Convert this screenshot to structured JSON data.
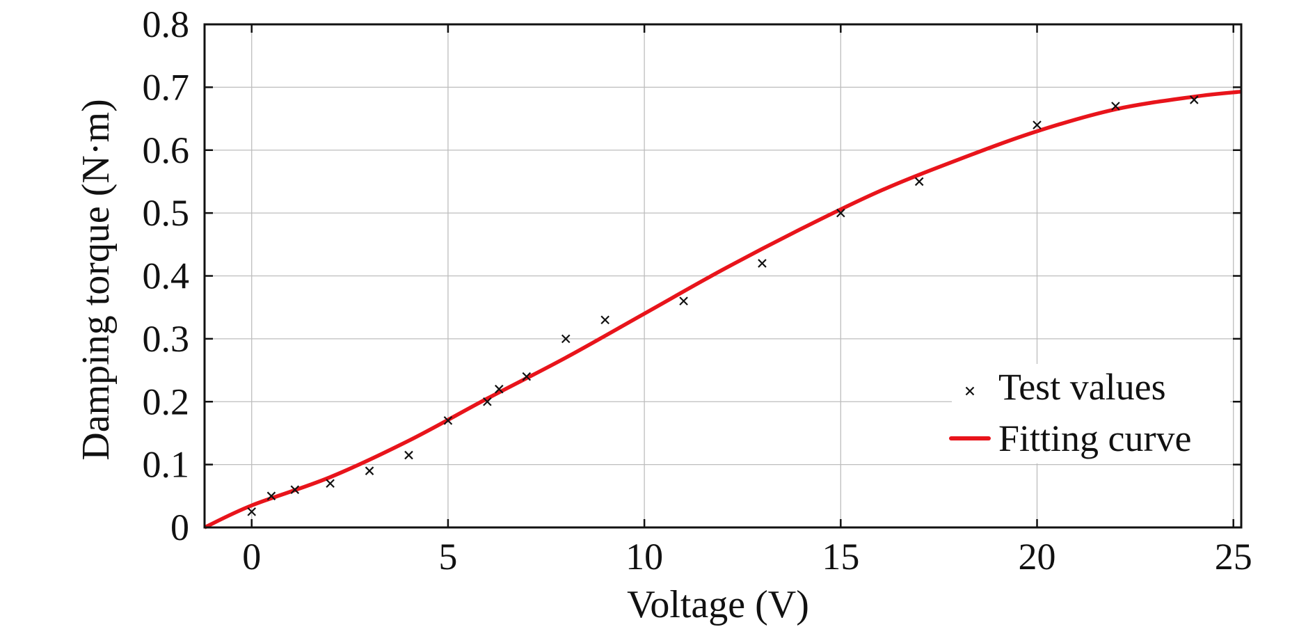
{
  "chart_data": {
    "type": "scatter",
    "xlabel": "Voltage (V)",
    "ylabel": "Damping torque (N·m)",
    "xlim": [
      -1.2,
      25.2
    ],
    "ylim": [
      0,
      0.8
    ],
    "x_ticks": [
      0,
      5,
      10,
      15,
      20,
      25
    ],
    "y_ticks": [
      0,
      0.1,
      0.2,
      0.3,
      0.4,
      0.5,
      0.6,
      0.7,
      0.8
    ],
    "x_tick_labels": [
      "0",
      "5",
      "10",
      "15",
      "20",
      "25"
    ],
    "y_tick_labels": [
      "0",
      "0.1",
      "0.2",
      "0.3",
      "0.4",
      "0.5",
      "0.6",
      "0.7",
      "0.8"
    ],
    "grid": true,
    "legend_position": "lower-right",
    "series": [
      {
        "name": "Test values",
        "type": "scatter",
        "marker": "x",
        "color": "#111111",
        "x": [
          0,
          0.5,
          1.1,
          2,
          3,
          4,
          5,
          6,
          6.3,
          7,
          8,
          9,
          11,
          13,
          15,
          17,
          20,
          22,
          24
        ],
        "y": [
          0.025,
          0.05,
          0.06,
          0.07,
          0.09,
          0.115,
          0.17,
          0.2,
          0.22,
          0.24,
          0.3,
          0.33,
          0.36,
          0.42,
          0.5,
          0.55,
          0.64,
          0.67,
          0.68
        ]
      },
      {
        "name": "Fitting curve",
        "type": "line",
        "color": "#e8141b",
        "x": [
          -1.2,
          0,
          2,
          4,
          6,
          8,
          10,
          12,
          14,
          16,
          18,
          20,
          22,
          24,
          25.2
        ],
        "y": [
          0,
          0.035,
          0.08,
          0.138,
          0.205,
          0.27,
          0.34,
          0.41,
          0.475,
          0.535,
          0.585,
          0.63,
          0.665,
          0.685,
          0.693
        ]
      }
    ]
  }
}
